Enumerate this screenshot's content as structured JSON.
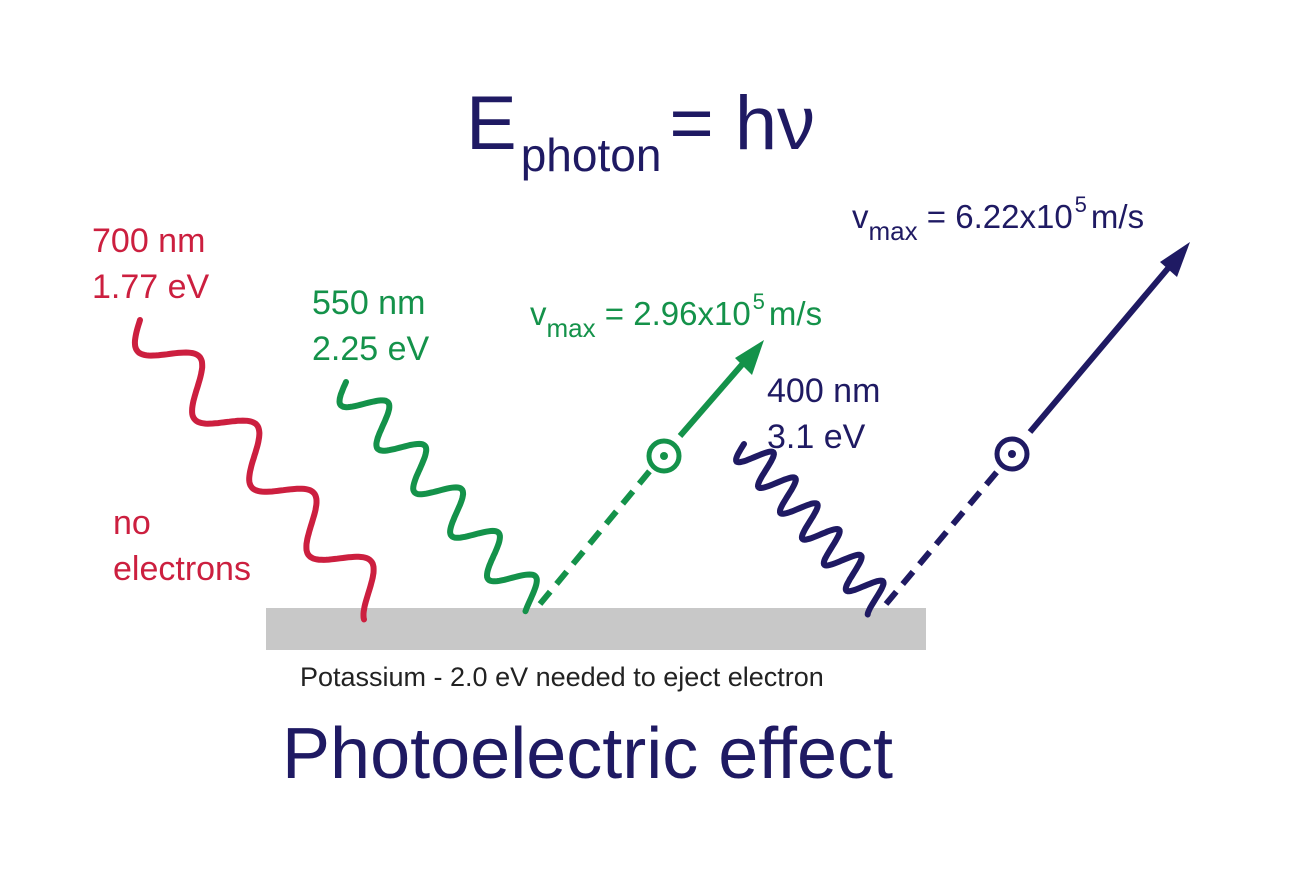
{
  "equation": {
    "main": "E",
    "subscript": "photon",
    "rhs": "= hν"
  },
  "colors": {
    "red": "#cc1f3f",
    "green": "#14924a",
    "navy": "#1f1a63",
    "plate": "#c8c8c8"
  },
  "red_light": {
    "wavelength": "700 nm",
    "energy": "1.77 eV",
    "result_line1": "no",
    "result_line2": "electrons"
  },
  "green_light": {
    "wavelength": "550 nm",
    "energy": "2.25 eV",
    "v_symbol": "v",
    "v_sub": "max",
    "v_eq": "= 2.96x10",
    "v_exp": "5",
    "v_unit": "m/s"
  },
  "blue_light": {
    "wavelength": "400 nm",
    "energy": "3.1 eV",
    "v_symbol": "v",
    "v_sub": "max",
    "v_eq": "= 6.22x10",
    "v_exp": "5",
    "v_unit": "m/s"
  },
  "plate_caption": "Potassium - 2.0 eV needed to eject electron",
  "title": "Photoelectric effect"
}
